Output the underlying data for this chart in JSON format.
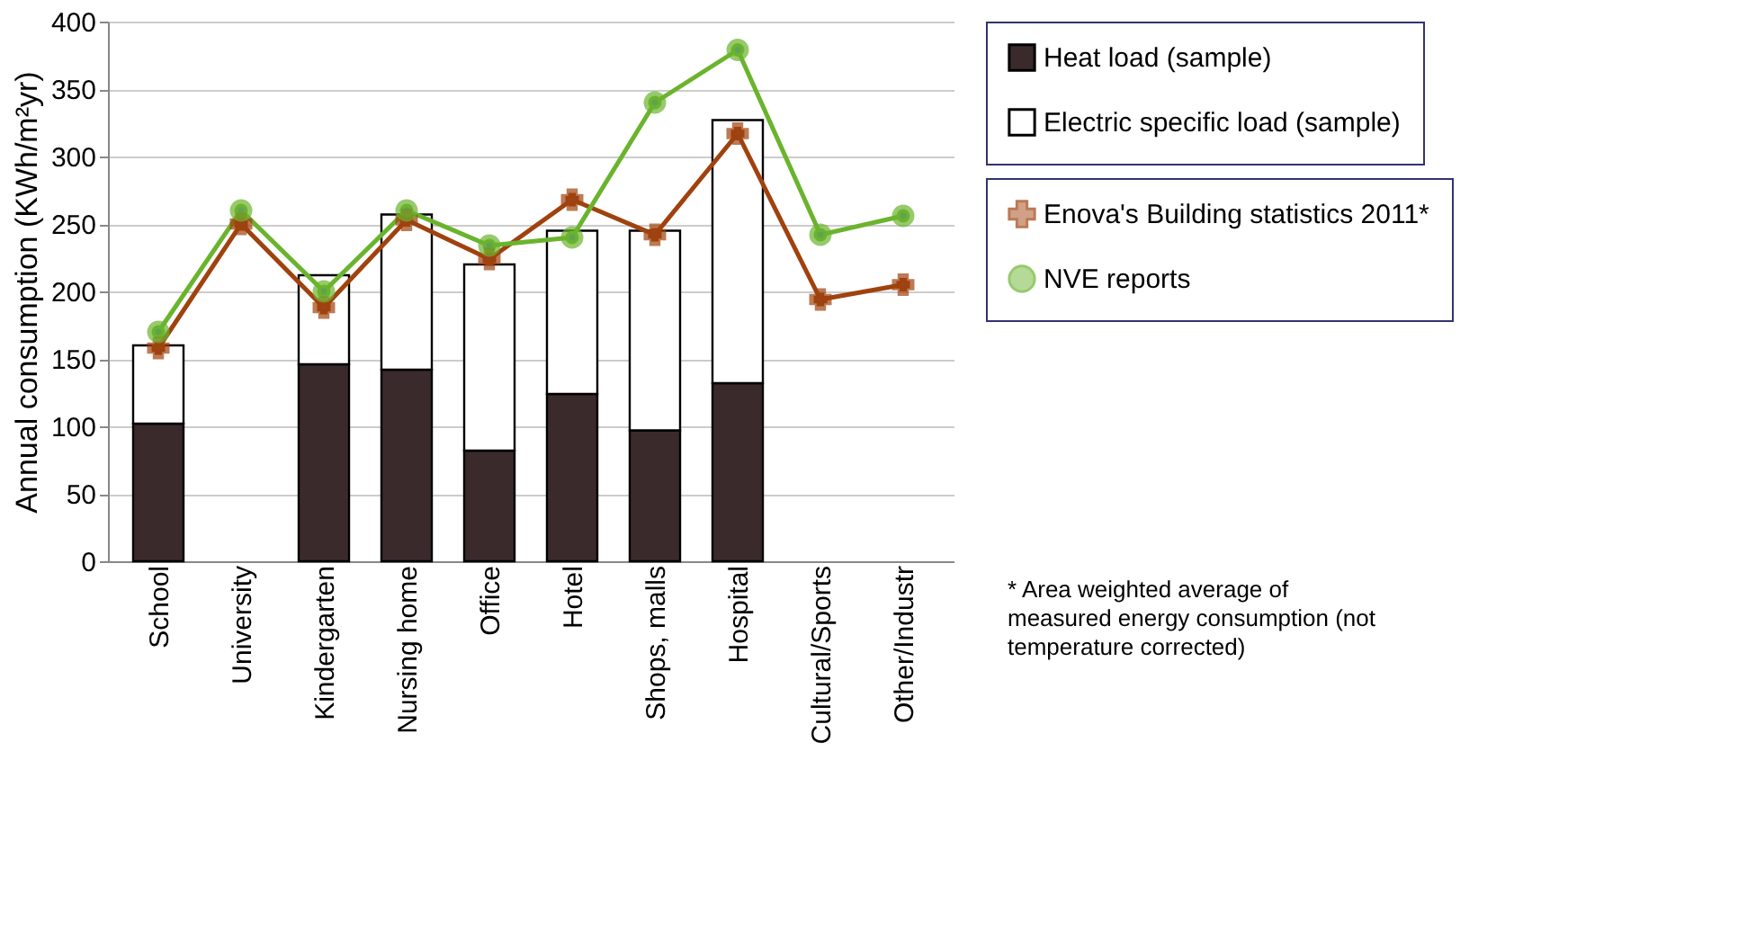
{
  "chart_data": {
    "type": "bar",
    "stacked": true,
    "categories": [
      "School",
      "University",
      "Kindergarten",
      "Nursing home",
      "Office",
      "Hotel",
      "Shops, malls",
      "Hospital",
      "Cultural/Sports",
      "Other/Industr"
    ],
    "ylabel": "Annual consumption (KWh/m²yr)",
    "ylim": [
      0,
      400
    ],
    "yticks": [
      0,
      50,
      100,
      150,
      200,
      250,
      300,
      350,
      400
    ],
    "grid": "y",
    "legend": "right",
    "series": [
      {
        "name": "Heat load (sample)",
        "color": "#3b2a2c",
        "values": [
          102,
          null,
          146,
          142,
          82,
          124,
          97,
          132,
          null,
          null
        ]
      },
      {
        "name": "Electric specific load (sample)",
        "color": "#ffffff",
        "values": [
          58,
          null,
          66,
          115,
          138,
          121,
          148,
          195,
          null,
          null
        ]
      },
      {
        "name": "Enova's Building statistics 2011*",
        "type": "line",
        "color": "#a0420e",
        "marker": "cross",
        "values": [
          158,
          250,
          188,
          253,
          224,
          268,
          242,
          317,
          194,
          205
        ]
      },
      {
        "name": "NVE reports",
        "type": "line",
        "color": "#6ab42d",
        "marker": "circle",
        "values": [
          170,
          260,
          200,
          260,
          234,
          240,
          340,
          379,
          242,
          256
        ]
      }
    ],
    "annotations": [
      "* Area weighted average of measured energy consumption (not temperature corrected)"
    ]
  }
}
